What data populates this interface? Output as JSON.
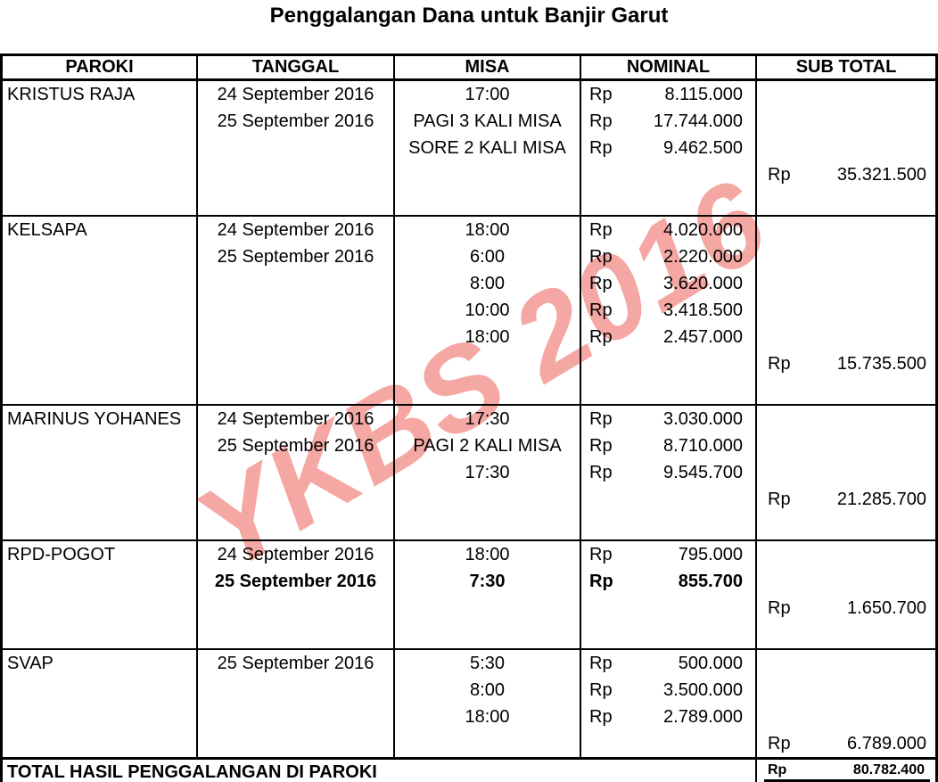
{
  "title": "Penggalangan Dana untuk Banjir Garut",
  "watermark": {
    "text": "YKBS 2016",
    "color": "#f5a8a3"
  },
  "table": {
    "headers": [
      "PAROKI",
      "TANGGAL",
      "MISA",
      "NOMINAL",
      "SUB TOTAL"
    ],
    "currency": "Rp",
    "blocks": [
      {
        "paroki": "KRISTUS RAJA",
        "dates": [
          "24 September 2016",
          "25 September 2016"
        ],
        "rows": [
          {
            "misa": "17:00",
            "amount": "8.115.000"
          },
          {
            "misa": "PAGI 3 KALI MISA",
            "amount": "17.744.000"
          },
          {
            "misa": "SORE 2 KALI MISA",
            "amount": "9.462.500"
          }
        ],
        "subtotal": "35.321.500"
      },
      {
        "paroki": "KELSAPA",
        "dates": [
          "24 September 2016",
          "25 September 2016"
        ],
        "rows": [
          {
            "misa": "18:00",
            "amount": "4.020.000"
          },
          {
            "misa": "6:00",
            "amount": "2.220.000"
          },
          {
            "misa": "8:00",
            "amount": "3.620.000"
          },
          {
            "misa": "10:00",
            "amount": "3.418.500"
          },
          {
            "misa": "18:00",
            "amount": "2.457.000"
          }
        ],
        "subtotal": "15.735.500"
      },
      {
        "paroki": "MARINUS YOHANES",
        "dates": [
          "24 September 2016",
          "25 September 2016"
        ],
        "rows": [
          {
            "misa": "17:30",
            "amount": "3.030.000"
          },
          {
            "misa": "PAGI 2 KALI MISA",
            "amount": "8.710.000"
          },
          {
            "misa": "17:30",
            "amount": "9.545.700"
          }
        ],
        "subtotal": "21.285.700"
      },
      {
        "paroki": "RPD-POGOT",
        "dates": [
          "24 September 2016",
          "25 September 2016"
        ],
        "rows": [
          {
            "misa": "18:00",
            "amount": "795.000"
          },
          {
            "misa": "7:30",
            "amount": "855.700"
          }
        ],
        "subtotal": "1.650.700"
      },
      {
        "paroki": "SVAP",
        "dates": [
          "25 September 2016"
        ],
        "rows": [
          {
            "misa": "5:30",
            "amount": "500.000"
          },
          {
            "misa": "8:00",
            "amount": "3.500.000"
          },
          {
            "misa": "18:00",
            "amount": "2.789.000"
          }
        ],
        "subtotal": "6.789.000"
      }
    ],
    "total": {
      "label": "TOTAL HASIL PENGGALANGAN DI PAROKI",
      "amount": "80.782.400"
    }
  }
}
